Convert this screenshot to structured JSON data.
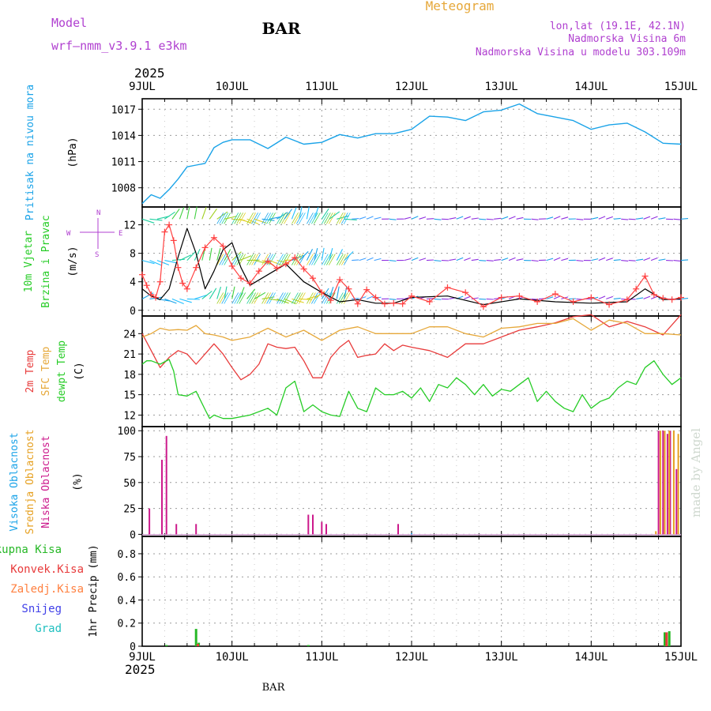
{
  "header": {
    "model_label": "Model",
    "model_name": "wrf—nmm_v3.9.1 e3km",
    "station": "BAR",
    "product": "Meteogram",
    "coords": "lon,lat (19.1E, 42.1N)",
    "altitude": "Nadmorska Visina 6m",
    "model_altitude": "Nadmorska Visina u modelu 303.109m",
    "year_top": "2025",
    "year_bottom": "2025",
    "footer_station": "BAR",
    "credit": "made by Angel",
    "wind_rose": {
      "n": "N",
      "w": "W",
      "e": "E",
      "s": "S"
    }
  },
  "colors": {
    "pressure": "#1aa3e8",
    "wind_obs": "#000000",
    "wind_speed": "#ff4040",
    "t2m": "#e83b3b",
    "sfc": "#e6a83a",
    "dew": "#26cc26",
    "high_cloud": "#1aa3e8",
    "mid_cloud": "#e6a020",
    "low_cloud": "#cc1a8c",
    "precip_total": "#26b826",
    "precip_conv": "#e83b3b",
    "precip_frozen": "#ff8040",
    "snow": "#4040e8",
    "graupel": "#20c0c0",
    "purple": "#b040d0"
  },
  "chart_data": [
    {
      "type": "line",
      "id": "pressure",
      "title": "Pritisak na nivou mora",
      "ylabel": "(hPa)",
      "yticks": [
        1008,
        1011,
        1014,
        1017
      ],
      "ylim": [
        1005.8,
        1018.2
      ],
      "x_days": [
        "9JUL",
        "10JUL",
        "11JUL",
        "12JUL",
        "13JUL",
        "14JUL",
        "15JUL"
      ],
      "series": [
        {
          "name": "Pritisak",
          "x": [
            0,
            0.1,
            0.2,
            0.3,
            0.4,
            0.5,
            0.6,
            0.7,
            0.8,
            0.9,
            1.0,
            1.2,
            1.4,
            1.6,
            1.8,
            2.0,
            2.2,
            2.4,
            2.6,
            2.8,
            3.0,
            3.2,
            3.4,
            3.6,
            3.8,
            4.0,
            4.2,
            4.4,
            4.6,
            4.8,
            5.0,
            5.2,
            5.4,
            5.6,
            5.8,
            6.0
          ],
          "values": [
            1006.2,
            1007.2,
            1006.8,
            1007.8,
            1009.0,
            1010.4,
            1010.6,
            1010.8,
            1012.6,
            1013.2,
            1013.5,
            1013.5,
            1012.5,
            1013.8,
            1013.0,
            1013.2,
            1014.1,
            1013.7,
            1014.2,
            1014.2,
            1014.7,
            1016.2,
            1016.1,
            1015.7,
            1016.7,
            1016.9,
            1017.6,
            1016.5,
            1016.1,
            1015.7,
            1014.7,
            1015.2,
            1015.4,
            1014.4,
            1013.1,
            1013.0
          ]
        }
      ]
    },
    {
      "type": "line",
      "id": "wind",
      "title_lines": [
        "10m Vjetar",
        "Brzina i Pravac"
      ],
      "ylabel": "(m/s)",
      "yticks": [
        0,
        4,
        8,
        12
      ],
      "ylim": [
        -0.8,
        14.5
      ],
      "barb_rows": [
        1.6,
        7.0,
        12.8
      ],
      "series": [
        {
          "name": "Brzina (model)",
          "x": [
            0,
            0.05,
            0.1,
            0.15,
            0.2,
            0.25,
            0.3,
            0.35,
            0.4,
            0.45,
            0.5,
            0.6,
            0.7,
            0.8,
            0.9,
            1.0,
            1.1,
            1.2,
            1.3,
            1.4,
            1.5,
            1.6,
            1.7,
            1.8,
            1.9,
            2.0,
            2.1,
            2.2,
            2.3,
            2.4,
            2.5,
            2.6,
            2.7,
            2.8,
            2.9,
            3.0,
            3.2,
            3.4,
            3.6,
            3.8,
            4.0,
            4.2,
            4.4,
            4.6,
            4.8,
            5.0,
            5.2,
            5.4,
            5.5,
            5.6,
            5.7,
            5.8,
            5.9,
            6.0
          ],
          "values": [
            5.0,
            3.5,
            2.2,
            1.8,
            4.0,
            11.0,
            12.0,
            9.8,
            6.0,
            3.8,
            3.0,
            6.0,
            8.8,
            10.2,
            9.0,
            6.2,
            4.5,
            3.8,
            5.5,
            6.9,
            5.9,
            6.5,
            7.4,
            5.8,
            4.5,
            2.5,
            1.4,
            4.3,
            3.0,
            0.9,
            2.9,
            1.8,
            0.9,
            1.0,
            0.9,
            2.0,
            1.2,
            3.2,
            2.5,
            0.5,
            1.8,
            2.0,
            1.2,
            2.3,
            1.2,
            1.8,
            0.8,
            1.5,
            3.0,
            4.8,
            2.2,
            1.7,
            1.5,
            1.8
          ]
        },
        {
          "name": "Brzina (obs)",
          "x": [
            0,
            0.1,
            0.2,
            0.3,
            0.4,
            0.5,
            0.6,
            0.7,
            0.8,
            0.9,
            1.0,
            1.1,
            1.2,
            1.4,
            1.6,
            1.8,
            2.0,
            2.2,
            2.4,
            2.6,
            2.8,
            3.0,
            3.4,
            3.8,
            4.2,
            4.6,
            5.0,
            5.4,
            5.6,
            5.8,
            6.0
          ],
          "values": [
            3.0,
            2.0,
            1.5,
            3.0,
            7.5,
            11.5,
            8.0,
            3.0,
            5.5,
            8.5,
            9.5,
            6.0,
            3.5,
            5.0,
            6.5,
            4.0,
            2.5,
            1.2,
            1.5,
            1.0,
            1.0,
            1.8,
            2.0,
            0.8,
            1.6,
            1.2,
            1.0,
            1.2,
            3.0,
            1.5,
            1.6
          ]
        }
      ]
    },
    {
      "type": "line",
      "id": "temperature",
      "legend": [
        "2m Temp",
        "SFC Temp",
        "dewpt Temp"
      ],
      "ylabel": "(C)",
      "yticks": [
        12,
        15,
        18,
        21,
        24
      ],
      "ylim": [
        10.3,
        26.6
      ],
      "series": [
        {
          "name": "2m Temp",
          "x": [
            0,
            0.1,
            0.2,
            0.3,
            0.4,
            0.5,
            0.6,
            0.7,
            0.8,
            0.9,
            1.0,
            1.1,
            1.2,
            1.3,
            1.4,
            1.5,
            1.6,
            1.7,
            1.8,
            1.9,
            2.0,
            2.1,
            2.2,
            2.3,
            2.4,
            2.5,
            2.6,
            2.7,
            2.8,
            2.9,
            3.0,
            3.2,
            3.4,
            3.6,
            3.8,
            4.0,
            4.2,
            4.4,
            4.6,
            4.8,
            5.0,
            5.2,
            5.4,
            5.6,
            5.8,
            6.0
          ],
          "values": [
            24.0,
            21.5,
            19.0,
            20.5,
            21.5,
            21.0,
            19.5,
            21.0,
            22.5,
            21.0,
            19.0,
            17.2,
            18.0,
            19.5,
            22.5,
            22.0,
            21.8,
            22.0,
            20.0,
            17.5,
            17.5,
            20.5,
            22.0,
            23.0,
            20.5,
            20.8,
            21.0,
            22.5,
            21.5,
            22.3,
            22.0,
            21.5,
            20.5,
            22.5,
            22.5,
            23.5,
            24.5,
            25.0,
            25.6,
            26.5,
            26.8,
            25.0,
            25.8,
            25.0,
            23.8,
            26.8
          ]
        },
        {
          "name": "SFC Temp",
          "x": [
            0,
            0.1,
            0.2,
            0.3,
            0.4,
            0.5,
            0.6,
            0.7,
            0.8,
            0.9,
            1.0,
            1.2,
            1.4,
            1.6,
            1.8,
            2.0,
            2.2,
            2.4,
            2.6,
            2.8,
            3.0,
            3.2,
            3.4,
            3.6,
            3.8,
            4.0,
            4.2,
            4.4,
            4.6,
            4.8,
            5.0,
            5.2,
            5.4,
            5.6,
            5.8,
            6.0
          ],
          "values": [
            23.5,
            24.0,
            24.8,
            24.5,
            24.6,
            24.5,
            25.2,
            24.0,
            23.8,
            23.5,
            23.0,
            23.5,
            24.8,
            23.5,
            24.5,
            23.0,
            24.5,
            25.0,
            24.0,
            24.0,
            24.0,
            25.0,
            25.0,
            24.0,
            23.5,
            24.8,
            25.0,
            25.5,
            25.5,
            26.2,
            24.5,
            26.0,
            25.5,
            24.0,
            24.0,
            23.8
          ]
        },
        {
          "name": "dewpt Temp",
          "x": [
            0,
            0.05,
            0.1,
            0.2,
            0.3,
            0.35,
            0.4,
            0.5,
            0.6,
            0.7,
            0.75,
            0.8,
            0.9,
            1.0,
            1.2,
            1.4,
            1.5,
            1.6,
            1.7,
            1.8,
            1.9,
            2.0,
            2.1,
            2.2,
            2.3,
            2.4,
            2.5,
            2.6,
            2.7,
            2.8,
            2.9,
            3.0,
            3.1,
            3.2,
            3.3,
            3.4,
            3.5,
            3.6,
            3.7,
            3.8,
            3.9,
            4.0,
            4.1,
            4.2,
            4.3,
            4.4,
            4.5,
            4.6,
            4.7,
            4.8,
            4.9,
            5.0,
            5.1,
            5.2,
            5.3,
            5.4,
            5.5,
            5.6,
            5.7,
            5.8,
            5.9,
            6.0
          ],
          "values": [
            19.5,
            20.0,
            20.0,
            19.5,
            20.2,
            18.5,
            15.0,
            14.8,
            15.5,
            12.8,
            11.5,
            12.0,
            11.5,
            11.5,
            12.0,
            13.0,
            12.0,
            16.0,
            17.0,
            12.5,
            13.5,
            12.5,
            12.0,
            11.8,
            15.5,
            13.0,
            12.5,
            16.0,
            15.0,
            15.0,
            15.5,
            14.5,
            16.0,
            14.0,
            16.5,
            16.0,
            17.5,
            16.5,
            15.0,
            16.5,
            14.8,
            15.8,
            15.5,
            16.5,
            17.5,
            14.0,
            15.5,
            14.0,
            13.0,
            12.5,
            15.0,
            13.0,
            14.0,
            14.5,
            16.0,
            17.0,
            16.5,
            19.0,
            20.0,
            18.0,
            16.5,
            17.5
          ]
        }
      ]
    },
    {
      "type": "bar",
      "id": "cloud",
      "legend": [
        "Visoka Oblacnost",
        "Srednja Oblacnost",
        "Niska Oblacnost"
      ],
      "ylabel": "(%)",
      "yticks": [
        0,
        25,
        50,
        75,
        100
      ],
      "ylim": [
        -2,
        104
      ],
      "series": [
        {
          "name": "Niska Oblacnost",
          "x": [
            0.08,
            0.22,
            0.27,
            0.38,
            0.6,
            1.85,
            1.9,
            2.0,
            2.05,
            2.85,
            5.75,
            5.8,
            5.85,
            5.88,
            5.95
          ],
          "values": [
            25,
            72,
            95,
            10,
            10,
            19,
            19,
            12,
            10,
            10,
            100,
            100,
            97,
            100,
            63
          ]
        },
        {
          "name": "Srednja Oblacnost",
          "x": [
            5.72,
            5.77,
            5.82,
            5.87,
            5.92,
            5.97
          ],
          "values": [
            3,
            100,
            100,
            100,
            100,
            97
          ]
        },
        {
          "name": "Visoka Oblacnost",
          "x": [
            3.0
          ],
          "values": [
            1
          ]
        }
      ]
    },
    {
      "type": "bar",
      "id": "precip",
      "legend": [
        "Ukupna Kisa",
        "Konvek.Kisa",
        "Zaledj.Kisa",
        "Snijeg",
        "Grad"
      ],
      "ylabel": "1hr Precip (mm)",
      "yticks": [
        0,
        0.2,
        0.4,
        0.6,
        0.8
      ],
      "ylim": [
        0,
        0.95
      ],
      "series": [
        {
          "name": "Ukupna Kisa",
          "x": [
            0.27,
            0.6,
            0.63,
            1.85,
            5.82,
            5.87
          ],
          "values": [
            0.01,
            0.15,
            0.03,
            0.01,
            0.12,
            0.13
          ]
        },
        {
          "name": "Konvek.Kisa",
          "x": [
            0.62,
            5.84
          ],
          "values": [
            0.02,
            0.12
          ]
        }
      ]
    }
  ]
}
